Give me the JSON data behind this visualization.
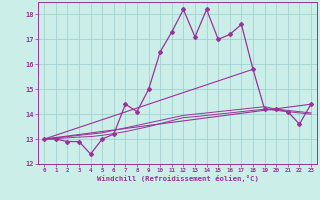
{
  "xlabel": "Windchill (Refroidissement éolien,°C)",
  "bg_color": "#cceee8",
  "grid_color": "#99cccc",
  "line_color": "#993399",
  "xlim": [
    -0.5,
    23.5
  ],
  "ylim": [
    12,
    18.5
  ],
  "xticks": [
    0,
    1,
    2,
    3,
    4,
    5,
    6,
    7,
    8,
    9,
    10,
    11,
    12,
    13,
    14,
    15,
    16,
    17,
    18,
    19,
    20,
    21,
    22,
    23
  ],
  "yticks": [
    12,
    13,
    14,
    15,
    16,
    17,
    18
  ],
  "series": {
    "line1_x": [
      0,
      1,
      2,
      3,
      4,
      5,
      6,
      7,
      8,
      9,
      10,
      11,
      12,
      13,
      14,
      15,
      16,
      17,
      18,
      19,
      20,
      21,
      22,
      23
    ],
    "line1_y": [
      13.0,
      13.0,
      12.9,
      12.9,
      12.4,
      13.0,
      13.2,
      14.4,
      14.1,
      15.0,
      16.5,
      17.3,
      18.2,
      17.1,
      18.2,
      17.0,
      17.2,
      17.6,
      15.8,
      14.2,
      14.2,
      14.1,
      13.6,
      14.4
    ],
    "line2_x": [
      0,
      18
    ],
    "line2_y": [
      13.0,
      15.8
    ],
    "line3_x": [
      0,
      23
    ],
    "line3_y": [
      13.0,
      14.4
    ],
    "line4_x": [
      0,
      1,
      2,
      3,
      4,
      5,
      6,
      7,
      8,
      9,
      10,
      11,
      12,
      13,
      14,
      15,
      16,
      17,
      18,
      19,
      20,
      21,
      22,
      23
    ],
    "line4_y": [
      13.0,
      13.05,
      13.1,
      13.15,
      13.2,
      13.25,
      13.35,
      13.45,
      13.55,
      13.65,
      13.75,
      13.85,
      13.95,
      14.0,
      14.05,
      14.1,
      14.15,
      14.2,
      14.25,
      14.3,
      14.2,
      14.15,
      14.1,
      14.05
    ],
    "line5_x": [
      0,
      1,
      2,
      3,
      4,
      5,
      6,
      7,
      8,
      9,
      10,
      11,
      12,
      13,
      14,
      15,
      16,
      17,
      18,
      19,
      20,
      21,
      22,
      23
    ],
    "line5_y": [
      13.0,
      13.02,
      13.05,
      13.08,
      13.1,
      13.15,
      13.22,
      13.3,
      13.4,
      13.5,
      13.62,
      13.74,
      13.86,
      13.9,
      13.95,
      14.0,
      14.05,
      14.1,
      14.15,
      14.2,
      14.15,
      14.1,
      14.05,
      14.0
    ]
  }
}
